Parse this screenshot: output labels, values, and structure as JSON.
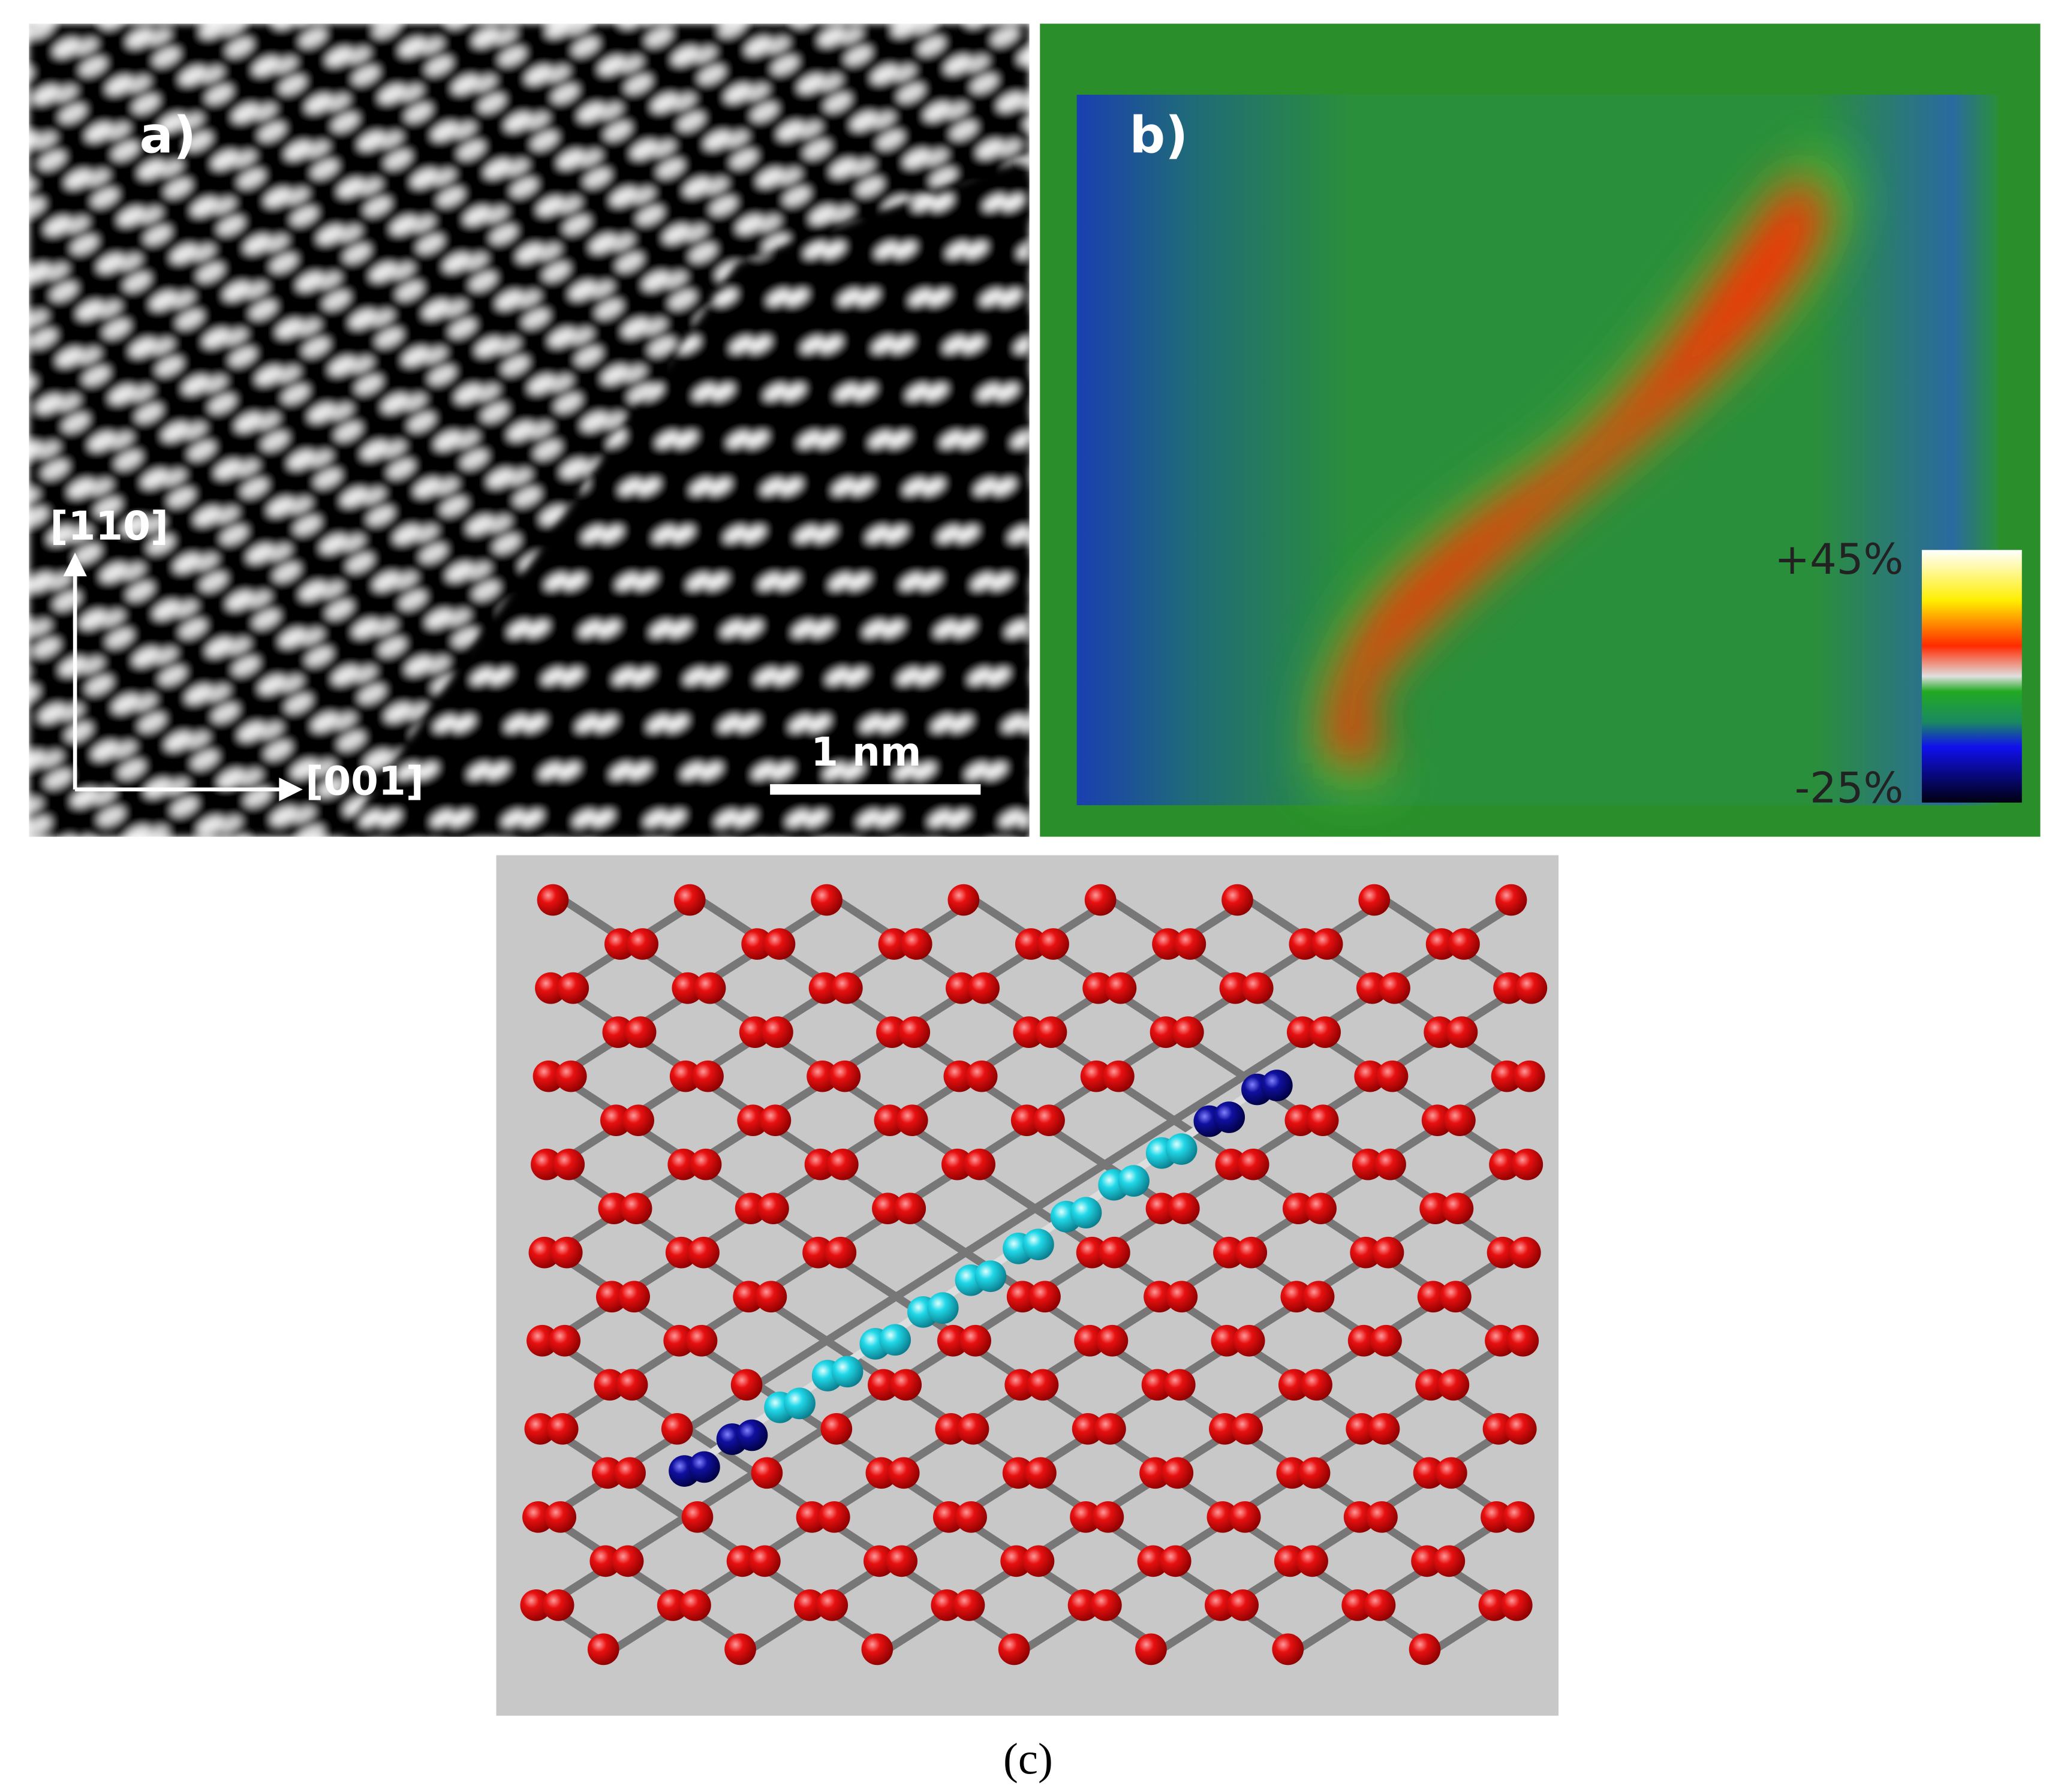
{
  "panel_a": {
    "label": "a)",
    "axis_vertical": "[110]",
    "axis_horizontal": "[001]",
    "scale_bar": "1 nm"
  },
  "panel_b": {
    "label": "b)",
    "colorbar_max": "+45%",
    "colorbar_min": "-25%"
  },
  "panel_c": {
    "caption": "(c)"
  }
}
